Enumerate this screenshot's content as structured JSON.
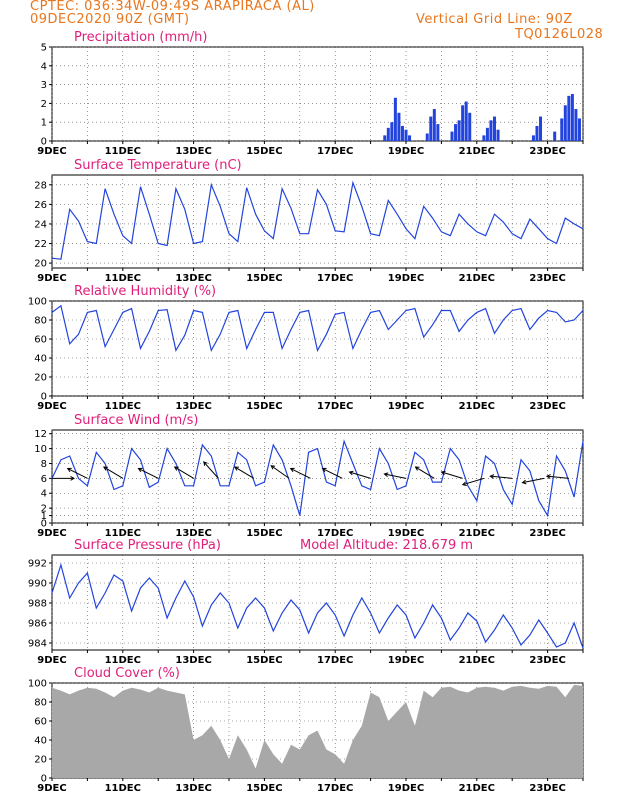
{
  "header": {
    "line1": "CPTEC:   036:34W-09:49S   ARAPIRACA (AL)",
    "line2": "09DEC2020 90Z (GMT)",
    "grid_note": "Vertical Grid Line: 90Z",
    "code": "TQ0126L028"
  },
  "colors": {
    "accent": "#e8761e",
    "title": "#e0207a",
    "series": "#2244dd",
    "cloud": "#a8a8a8",
    "arrow": "#000000"
  },
  "x_axis": {
    "start_day": 9,
    "end_day": 24,
    "date_ticks": [
      "9DEC",
      "11DEC",
      "13DEC",
      "15DEC",
      "17DEC",
      "19DEC",
      "21DEC",
      "23DEC"
    ]
  },
  "chart_data": [
    {
      "id": "precip",
      "type": "bar",
      "title": "Precipitation (mm/h)",
      "ylim": [
        0,
        5
      ],
      "yticks": [
        0,
        1,
        2,
        3,
        4,
        5
      ],
      "x": [
        18.4,
        18.5,
        18.6,
        18.7,
        18.8,
        18.9,
        19.0,
        19.1,
        19.6,
        19.7,
        19.8,
        19.9,
        20.3,
        20.4,
        20.5,
        20.6,
        20.7,
        20.8,
        21.2,
        21.3,
        21.4,
        21.5,
        21.6,
        22.6,
        22.7,
        22.8,
        23.2,
        23.4,
        23.5,
        23.6,
        23.7,
        23.8,
        23.9
      ],
      "values": [
        0.3,
        0.7,
        1.0,
        2.3,
        1.5,
        0.8,
        0.6,
        0.3,
        0.4,
        1.3,
        1.7,
        0.9,
        0.5,
        0.9,
        1.1,
        1.9,
        2.1,
        1.5,
        0.3,
        0.7,
        1.1,
        1.3,
        0.6,
        0.3,
        0.8,
        1.3,
        0.5,
        1.2,
        1.9,
        2.4,
        2.5,
        1.7,
        1.2
      ]
    },
    {
      "id": "temp",
      "type": "line",
      "title": "Surface Temperature (nC)",
      "ylim": [
        19.5,
        29
      ],
      "yticks": [
        20,
        22,
        24,
        26,
        28
      ],
      "x": [
        9.0,
        9.25,
        9.5,
        9.75,
        10.0,
        10.25,
        10.5,
        10.75,
        11.0,
        11.25,
        11.5,
        11.75,
        12.0,
        12.25,
        12.5,
        12.75,
        13.0,
        13.25,
        13.5,
        13.75,
        14.0,
        14.25,
        14.5,
        14.75,
        15.0,
        15.25,
        15.5,
        15.75,
        16.0,
        16.25,
        16.5,
        16.75,
        17.0,
        17.25,
        17.5,
        17.75,
        18.0,
        18.25,
        18.5,
        18.75,
        19.0,
        19.25,
        19.5,
        19.75,
        20.0,
        20.25,
        20.5,
        20.75,
        21.0,
        21.25,
        21.5,
        21.75,
        22.0,
        22.25,
        22.5,
        22.75,
        23.0,
        23.25,
        23.5,
        23.75,
        24.0
      ],
      "values": [
        20.5,
        20.4,
        25.5,
        24.3,
        22.2,
        22.0,
        27.6,
        25.0,
        22.8,
        22.0,
        27.8,
        25.0,
        22.0,
        21.8,
        27.6,
        25.5,
        22.0,
        22.2,
        28.0,
        25.8,
        23.0,
        22.2,
        27.7,
        25.0,
        23.3,
        22.5,
        27.6,
        25.6,
        23.0,
        23.0,
        27.5,
        26.0,
        23.3,
        23.2,
        28.2,
        25.8,
        23.0,
        22.8,
        26.4,
        25.0,
        23.5,
        22.5,
        25.8,
        24.6,
        23.2,
        22.8,
        25.0,
        24.0,
        23.2,
        22.8,
        25.0,
        24.2,
        23.0,
        22.5,
        24.5,
        23.5,
        22.5,
        22.0,
        24.6,
        24.0,
        23.5
      ]
    },
    {
      "id": "rh",
      "type": "line",
      "title": "Relative Humidity (%)",
      "ylim": [
        0,
        100
      ],
      "yticks": [
        0,
        20,
        40,
        60,
        80,
        100
      ],
      "x": [
        9.0,
        9.25,
        9.5,
        9.75,
        10.0,
        10.25,
        10.5,
        10.75,
        11.0,
        11.25,
        11.5,
        11.75,
        12.0,
        12.25,
        12.5,
        12.75,
        13.0,
        13.25,
        13.5,
        13.75,
        14.0,
        14.25,
        14.5,
        14.75,
        15.0,
        15.25,
        15.5,
        15.75,
        16.0,
        16.25,
        16.5,
        16.75,
        17.0,
        17.25,
        17.5,
        17.75,
        18.0,
        18.25,
        18.5,
        18.75,
        19.0,
        19.25,
        19.5,
        19.75,
        20.0,
        20.25,
        20.5,
        20.75,
        21.0,
        21.25,
        21.5,
        21.75,
        22.0,
        22.25,
        22.5,
        22.75,
        23.0,
        23.25,
        23.5,
        23.75,
        24.0
      ],
      "values": [
        88,
        95,
        55,
        65,
        88,
        90,
        52,
        70,
        88,
        92,
        50,
        68,
        90,
        91,
        48,
        64,
        90,
        88,
        48,
        65,
        88,
        90,
        50,
        70,
        88,
        88,
        50,
        70,
        88,
        90,
        48,
        65,
        86,
        88,
        50,
        70,
        88,
        90,
        70,
        80,
        90,
        92,
        62,
        75,
        90,
        90,
        68,
        80,
        88,
        92,
        66,
        80,
        90,
        92,
        70,
        82,
        90,
        88,
        78,
        80,
        90
      ]
    },
    {
      "id": "wind",
      "type": "line",
      "title": "Surface Wind (m/s)",
      "ylim": [
        0,
        12.5
      ],
      "yticks": [
        0,
        1,
        2,
        4,
        6,
        8,
        10,
        12
      ],
      "x": [
        9.0,
        9.25,
        9.5,
        9.75,
        10.0,
        10.25,
        10.5,
        10.75,
        11.0,
        11.25,
        11.5,
        11.75,
        12.0,
        12.25,
        12.5,
        12.75,
        13.0,
        13.25,
        13.5,
        13.75,
        14.0,
        14.25,
        14.5,
        14.75,
        15.0,
        15.25,
        15.5,
        15.75,
        16.0,
        16.25,
        16.5,
        16.75,
        17.0,
        17.25,
        17.5,
        17.75,
        18.0,
        18.25,
        18.5,
        18.75,
        19.0,
        19.25,
        19.5,
        19.75,
        20.0,
        20.25,
        20.5,
        20.75,
        21.0,
        21.25,
        21.5,
        21.75,
        22.0,
        22.25,
        22.5,
        22.75,
        23.0,
        23.25,
        23.5,
        23.75,
        24.0
      ],
      "values": [
        6.0,
        8.5,
        9.0,
        6.0,
        5.0,
        9.5,
        8.0,
        4.5,
        5.0,
        10.0,
        8.5,
        4.8,
        5.5,
        10.0,
        8.0,
        5.0,
        5.0,
        10.5,
        9.0,
        5.0,
        5.0,
        9.5,
        8.5,
        5.0,
        5.5,
        10.5,
        8.5,
        5.0,
        1.0,
        9.5,
        10.0,
        5.5,
        5.0,
        11.0,
        8.0,
        5.0,
        4.5,
        10.0,
        8.0,
        4.5,
        5.0,
        9.5,
        8.5,
        5.5,
        5.5,
        10.0,
        8.5,
        5.0,
        3.0,
        9.0,
        8.0,
        4.5,
        2.5,
        8.5,
        7.0,
        3.0,
        1.0,
        9.0,
        7.0,
        3.5,
        11.0
      ],
      "barbs": [
        {
          "x": 9.0,
          "dx": 1.0,
          "dy": 0.0
        },
        {
          "x": 10.0,
          "dx": -1.0,
          "dy": 0.5
        },
        {
          "x": 11.0,
          "dx": -1.0,
          "dy": 0.6
        },
        {
          "x": 12.0,
          "dx": -1.0,
          "dy": 0.5
        },
        {
          "x": 13.0,
          "dx": -1.0,
          "dy": 0.6
        },
        {
          "x": 13.7,
          "dx": -0.8,
          "dy": 0.9
        },
        {
          "x": 14.7,
          "dx": -1.0,
          "dy": 0.6
        },
        {
          "x": 15.7,
          "dx": -1.0,
          "dy": 0.7
        },
        {
          "x": 16.3,
          "dx": -1.0,
          "dy": 0.5
        },
        {
          "x": 17.2,
          "dx": -1.0,
          "dy": 0.5
        },
        {
          "x": 18.0,
          "dx": -1.0,
          "dy": 0.3
        },
        {
          "x": 19.0,
          "dx": -1.0,
          "dy": 0.2
        },
        {
          "x": 19.8,
          "dx": -1.0,
          "dy": 0.6
        },
        {
          "x": 20.6,
          "dx": -1.0,
          "dy": 0.3
        },
        {
          "x": 21.2,
          "dx": -1.0,
          "dy": -0.3
        },
        {
          "x": 22.0,
          "dx": -1.0,
          "dy": 0.1
        },
        {
          "x": 22.9,
          "dx": -1.0,
          "dy": -0.2
        },
        {
          "x": 23.6,
          "dx": -1.0,
          "dy": 0.1
        }
      ]
    },
    {
      "id": "pres",
      "type": "line",
      "title": "Surface Pressure (hPa)",
      "extra_title": "Model Altitude: 218.679 m",
      "ylim": [
        983.3,
        992.8
      ],
      "yticks": [
        984,
        986,
        988,
        990,
        992
      ],
      "x": [
        9.0,
        9.25,
        9.5,
        9.75,
        10.0,
        10.25,
        10.5,
        10.75,
        11.0,
        11.25,
        11.5,
        11.75,
        12.0,
        12.25,
        12.5,
        12.75,
        13.0,
        13.25,
        13.5,
        13.75,
        14.0,
        14.25,
        14.5,
        14.75,
        15.0,
        15.25,
        15.5,
        15.75,
        16.0,
        16.25,
        16.5,
        16.75,
        17.0,
        17.25,
        17.5,
        17.75,
        18.0,
        18.25,
        18.5,
        18.75,
        19.0,
        19.25,
        19.5,
        19.75,
        20.0,
        20.25,
        20.5,
        20.75,
        21.0,
        21.25,
        21.5,
        21.75,
        22.0,
        22.25,
        22.5,
        22.75,
        23.0,
        23.25,
        23.5,
        23.75,
        24.0
      ],
      "values": [
        989.0,
        991.8,
        988.5,
        990.0,
        991.0,
        987.5,
        989.0,
        990.8,
        990.2,
        987.2,
        989.5,
        990.5,
        989.5,
        986.5,
        988.5,
        990.2,
        988.6,
        985.7,
        987.8,
        989.0,
        988.0,
        985.5,
        987.5,
        988.5,
        987.5,
        985.2,
        987.0,
        988.3,
        987.3,
        985.0,
        987.0,
        988.0,
        986.8,
        984.7,
        986.8,
        988.5,
        987.0,
        985.0,
        986.5,
        987.8,
        986.8,
        984.5,
        986.0,
        987.8,
        986.5,
        984.3,
        985.5,
        987.0,
        986.2,
        984.1,
        985.3,
        986.8,
        985.5,
        983.8,
        984.8,
        986.3,
        985.0,
        983.6,
        984.0,
        986.0,
        983.5
      ]
    },
    {
      "id": "cloud",
      "type": "area",
      "title": "Cloud Cover (%)",
      "ylim": [
        0,
        100
      ],
      "yticks": [
        0,
        20,
        40,
        60,
        80,
        100
      ],
      "x": [
        9.0,
        9.25,
        9.5,
        9.75,
        10.0,
        10.25,
        10.5,
        10.75,
        11.0,
        11.25,
        11.5,
        11.75,
        12.0,
        12.25,
        12.5,
        12.75,
        13.0,
        13.25,
        13.5,
        13.75,
        14.0,
        14.25,
        14.5,
        14.75,
        15.0,
        15.25,
        15.5,
        15.75,
        16.0,
        16.25,
        16.5,
        16.75,
        17.0,
        17.25,
        17.5,
        17.75,
        18.0,
        18.25,
        18.5,
        18.75,
        19.0,
        19.25,
        19.5,
        19.75,
        20.0,
        20.25,
        20.5,
        20.75,
        21.0,
        21.25,
        21.5,
        21.75,
        22.0,
        22.25,
        22.5,
        22.75,
        23.0,
        23.25,
        23.5,
        23.75,
        24.0
      ],
      "values": [
        95,
        92,
        88,
        92,
        95,
        94,
        90,
        85,
        92,
        95,
        93,
        90,
        95,
        92,
        90,
        88,
        40,
        45,
        55,
        40,
        20,
        45,
        30,
        10,
        40,
        25,
        15,
        35,
        30,
        45,
        50,
        30,
        25,
        15,
        40,
        55,
        90,
        85,
        60,
        70,
        80,
        55,
        92,
        85,
        95,
        96,
        92,
        90,
        95,
        96,
        95,
        92,
        96,
        97,
        95,
        94,
        97,
        96,
        85,
        98,
        97
      ]
    }
  ]
}
